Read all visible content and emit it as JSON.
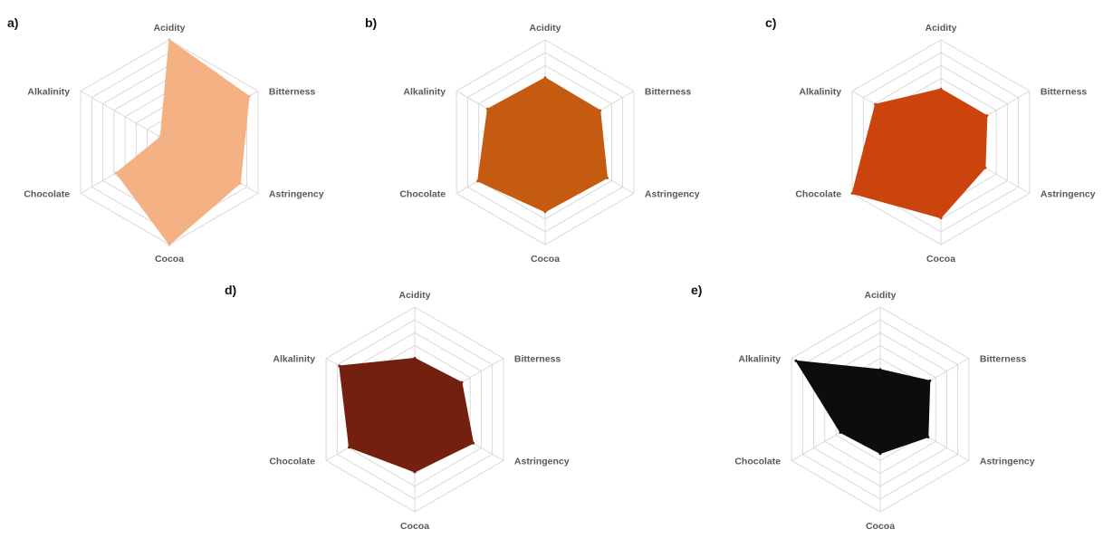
{
  "chart_data": [
    {
      "type": "radar",
      "panel": "a)",
      "axes": [
        "Acidity",
        "Bitterness",
        "Astringency",
        "Cocoa",
        "Chocolate",
        "Alkalinity"
      ],
      "values": [
        10,
        9,
        8,
        10,
        6,
        1
      ],
      "rmax": 10,
      "rings": 8,
      "color": "#f4b183"
    },
    {
      "type": "radar",
      "panel": "b)",
      "axes": [
        "Acidity",
        "Bitterness",
        "Astringency",
        "Cocoa",
        "Chocolate",
        "Alkalinity"
      ],
      "values": [
        6.3,
        6.2,
        7,
        6.8,
        7.6,
        6.5
      ],
      "rmax": 10,
      "rings": 8,
      "color": "#c55a11"
    },
    {
      "type": "radar",
      "panel": "c)",
      "axes": [
        "Acidity",
        "Bitterness",
        "Astringency",
        "Cocoa",
        "Chocolate",
        "Alkalinity"
      ],
      "values": [
        5.2,
        5.2,
        5,
        7.4,
        10,
        7.4
      ],
      "rmax": 10,
      "rings": 8,
      "color": "#cc440d"
    },
    {
      "type": "radar",
      "panel": "d)",
      "axes": [
        "Acidity",
        "Bitterness",
        "Astringency",
        "Cocoa",
        "Chocolate",
        "Alkalinity"
      ],
      "values": [
        5,
        5.3,
        6.6,
        6.1,
        7.4,
        8.5
      ],
      "rmax": 10,
      "rings": 8,
      "color": "#732010"
    },
    {
      "type": "radar",
      "panel": "e)",
      "axes": [
        "Acidity",
        "Bitterness",
        "Astringency",
        "Cocoa",
        "Chocolate",
        "Alkalinity"
      ],
      "values": [
        3.9,
        5.6,
        5.4,
        4.3,
        4.5,
        9.5
      ],
      "rmax": 10,
      "rings": 8,
      "color": "#0d0d0d"
    }
  ]
}
